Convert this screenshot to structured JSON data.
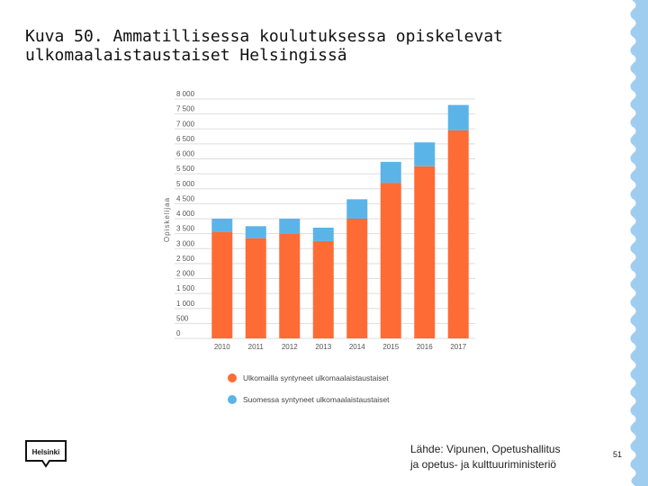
{
  "slide": {
    "title": "Kuva 50. Ammatillisessa koulutuksessa opiskelevat\nulkomaalaistaustaiset Helsingissä",
    "source": "Lähde: Vipunen, Opetushallitus\nja opetus- ja kulttuuriministeriö",
    "page_number": "51",
    "logo_text": "Helsinki"
  },
  "colors": {
    "foreign_born": "#ff6b35",
    "finland_born": "#5bb4e8",
    "edge": "#9fcdef",
    "grid": "#dddddd"
  },
  "chart_data": {
    "type": "bar",
    "stacked": true,
    "title": "",
    "xlabel": "",
    "ylabel": "Opiskelijaa",
    "categories": [
      "2010",
      "2011",
      "2012",
      "2013",
      "2014",
      "2015",
      "2016",
      "2017"
    ],
    "series": [
      {
        "name": "Ulkomailla syntyneet ulkomaalaistaustaiset",
        "color": "#ff6b35",
        "values": [
          3550,
          3350,
          3500,
          3250,
          4000,
          5200,
          5750,
          6950
        ]
      },
      {
        "name": "Suomessa syntyneet ulkomaalaistaustaiset",
        "color": "#5bb4e8",
        "values": [
          450,
          400,
          500,
          450,
          650,
          700,
          800,
          850
        ]
      }
    ],
    "ylim": [
      0,
      8000
    ],
    "yticks": [
      0,
      500,
      1000,
      1500,
      2000,
      2500,
      3000,
      3500,
      4000,
      4500,
      5000,
      5500,
      6000,
      6500,
      7000,
      7500,
      8000
    ],
    "ytick_labels": [
      "0",
      "500",
      "1 000",
      "1 500",
      "2 000",
      "2 500",
      "3 000",
      "3 500",
      "4 000",
      "4 500",
      "5 000",
      "5 500",
      "6 000",
      "6 500",
      "7 000",
      "7 500",
      "8 000"
    ],
    "grid": true,
    "legend": "bottom"
  }
}
